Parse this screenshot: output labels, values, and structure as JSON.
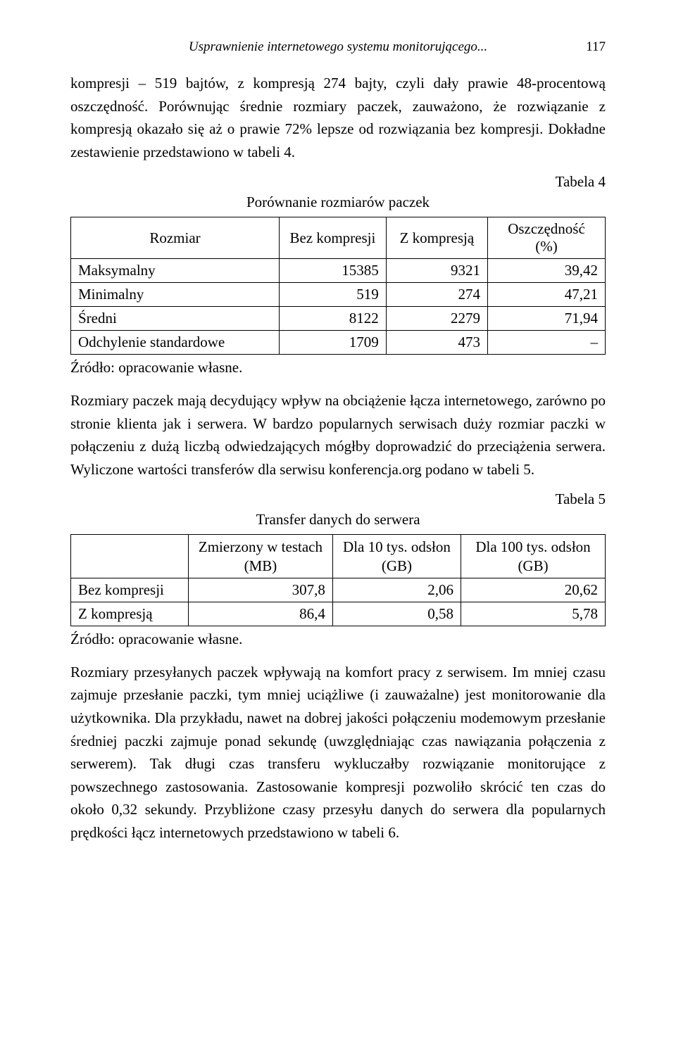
{
  "running_head": {
    "title": "Usprawnienie internetowego systemu monitorującego...",
    "page_number": "117"
  },
  "para1": "kompresji – 519 bajtów, z kompresją 274 bajty, czyli dały prawie 48-procentową oszczędność. Porównując średnie rozmiary paczek, zauważono, że rozwiązanie z kompresją okazało się aż o prawie 72% lepsze od rozwiązania bez kompresji. Dokładne zestawienie przedstawiono w tabeli 4.",
  "tabela4_label": "Tabela 4",
  "table4": {
    "title": "Porównanie rozmiarów paczek",
    "columns": [
      "Rozmiar",
      "Bez kompresji",
      "Z kompresją",
      "Oszczędność (%)"
    ],
    "rows": [
      [
        "Maksymalny",
        "15385",
        "9321",
        "39,42"
      ],
      [
        "Minimalny",
        "519",
        "274",
        "47,21"
      ],
      [
        "Średni",
        "8122",
        "2279",
        "71,94"
      ],
      [
        "Odchylenie standardowe",
        "1709",
        "473",
        "–"
      ]
    ]
  },
  "source_text": "Źródło: opracowanie własne.",
  "para2": "Rozmiary paczek mają decydujący wpływ na obciążenie łącza internetowego, zarówno po stronie klienta jak i serwera. W bardzo popularnych serwisach duży rozmiar paczki w połączeniu z dużą liczbą odwiedzających mógłby doprowadzić do przeciążenia serwera. Wyliczone wartości transferów dla serwisu konferencja.org podano w tabeli 5.",
  "tabela5_label": "Tabela 5",
  "table5": {
    "title": "Transfer danych do serwera",
    "columns": [
      "",
      "Zmierzony w testach\n(MB)",
      "Dla 10 tys. odsłon\n(GB)",
      "Dla 100 tys. odsłon\n(GB)"
    ],
    "rows": [
      [
        "Bez kompresji",
        "307,8",
        "2,06",
        "20,62"
      ],
      [
        "Z kompresją",
        "86,4",
        "0,58",
        "5,78"
      ]
    ]
  },
  "para3": "Rozmiary przesyłanych paczek wpływają na komfort pracy z serwisem. Im mniej czasu zajmuje przesłanie paczki, tym mniej uciążliwe (i zauważalne) jest monitorowanie dla użytkownika. Dla przykładu, nawet na dobrej jakości połączeniu modemowym przesłanie średniej paczki zajmuje ponad sekundę (uwzględniając czas nawiązania połączenia z serwerem). Tak długi czas transferu wykluczałby rozwiązanie monitorujące z powszechnego zastosowania. Zastosowanie kompresji pozwoliło skrócić ten czas do około 0,32 sekundy. Przybliżone czasy przesyłu danych do serwera dla popularnych prędkości łącz internetowych przedstawiono w tabeli 6.",
  "table4_col_widths": [
    "39%",
    "20%",
    "19%",
    "22%"
  ],
  "table5_col_widths": [
    "22%",
    "27%",
    "24%",
    "27%"
  ]
}
